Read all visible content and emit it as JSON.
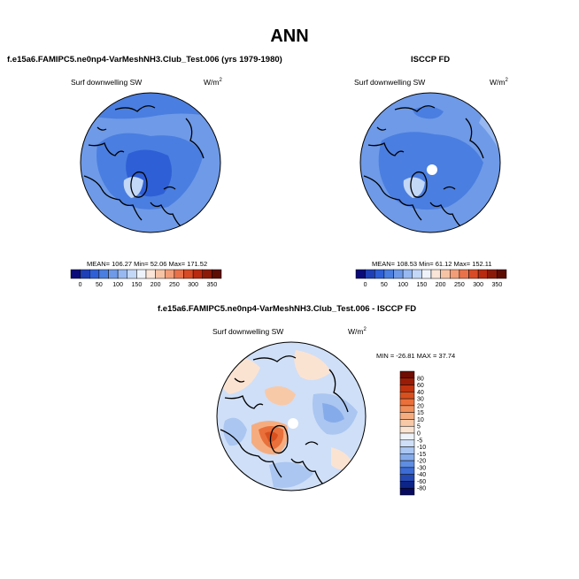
{
  "figure": {
    "title": "ANN"
  },
  "panels": [
    {
      "id": "test",
      "title": "f.e15a6.FAMIPC5.ne0np4-VarMeshNH3.Club_Test.006 (yrs 1979-1980)",
      "variable": "Surf downwelling SW",
      "units": "W/m",
      "units_exp": "2",
      "stats": "MEAN= 106.27  Min=  52.06  Max= 171.52"
    },
    {
      "id": "obs",
      "title": "ISCCP FD",
      "variable": "Surf downwelling SW",
      "units": "W/m",
      "units_exp": "2",
      "stats": "MEAN= 108.53  Min=  61.12  Max= 152.11"
    },
    {
      "id": "diff",
      "title": "f.e15a6.FAMIPC5.ne0np4-VarMeshNH3.Club_Test.006 - ISCCP FD",
      "variable": "Surf downwelling SW",
      "units": "W/m",
      "units_exp": "2",
      "stats": "MIN = -26.81  MAX =  37.74"
    }
  ],
  "chart_data": [
    {
      "type": "heatmap",
      "projection": "north-polar-stereographic",
      "title": "f.e15a6.FAMIPC5.ne0np4-VarMeshNH3.Club_Test.006 (yrs 1979-1980)",
      "field": "Surf downwelling SW",
      "units": "W/m2",
      "mean": 106.27,
      "min": 52.06,
      "max": 171.52,
      "colorbar": {
        "orientation": "horizontal",
        "levels": [
          0,
          25,
          50,
          75,
          100,
          125,
          150,
          175,
          200,
          225,
          250,
          275,
          300,
          325,
          350
        ],
        "tick_labels": [
          "0",
          "50",
          "100",
          "150",
          "200",
          "250",
          "300",
          "350"
        ],
        "colors": [
          "#0a0a7a",
          "#1e3fb5",
          "#2f5fd6",
          "#4a7ee0",
          "#6e9ae8",
          "#97b8f0",
          "#c3d7f7",
          "#eef3fb",
          "#fbe5d8",
          "#f6c3a5",
          "#f29d77",
          "#e9714a",
          "#d84a25",
          "#b8290f",
          "#8a1a07",
          "#5e0d02"
        ]
      }
    },
    {
      "type": "heatmap",
      "projection": "north-polar-stereographic",
      "title": "ISCCP FD",
      "field": "Surf downwelling SW",
      "units": "W/m2",
      "mean": 108.53,
      "min": 61.12,
      "max": 152.11,
      "colorbar": {
        "orientation": "horizontal",
        "levels": [
          0,
          25,
          50,
          75,
          100,
          125,
          150,
          175,
          200,
          225,
          250,
          275,
          300,
          325,
          350
        ],
        "tick_labels": [
          "0",
          "50",
          "100",
          "150",
          "200",
          "250",
          "300",
          "350"
        ],
        "colors": [
          "#0a0a7a",
          "#1e3fb5",
          "#2f5fd6",
          "#4a7ee0",
          "#6e9ae8",
          "#97b8f0",
          "#c3d7f7",
          "#eef3fb",
          "#fbe5d8",
          "#f6c3a5",
          "#f29d77",
          "#e9714a",
          "#d84a25",
          "#b8290f",
          "#8a1a07",
          "#5e0d02"
        ]
      }
    },
    {
      "type": "heatmap",
      "projection": "north-polar-stereographic",
      "title": "f.e15a6.FAMIPC5.ne0np4-VarMeshNH3.Club_Test.006 - ISCCP FD",
      "field": "Surf downwelling SW",
      "units": "W/m2",
      "min": -26.81,
      "max": 37.74,
      "colorbar": {
        "orientation": "vertical",
        "levels": [
          -80,
          -60,
          -40,
          -30,
          -20,
          -15,
          -10,
          -5,
          0,
          5,
          10,
          15,
          20,
          30,
          40,
          60,
          80
        ],
        "tick_labels": [
          "80",
          "60",
          "40",
          "30",
          "20",
          "15",
          "10",
          "5",
          "0",
          "-5",
          "-10",
          "-15",
          "-20",
          "-30",
          "-40",
          "-60",
          "-80"
        ],
        "colors_top_to_bottom": [
          "#6e0d02",
          "#9a1c06",
          "#c0330f",
          "#d9501f",
          "#e9703a",
          "#f08f5a",
          "#f5ad80",
          "#f8c9a7",
          "#fbe3d2",
          "#eef3fb",
          "#cfdff7",
          "#aac6f1",
          "#86abea",
          "#5f8de2",
          "#3c6cd4",
          "#2449b3",
          "#0e2588",
          "#070a5e"
        ]
      }
    }
  ]
}
